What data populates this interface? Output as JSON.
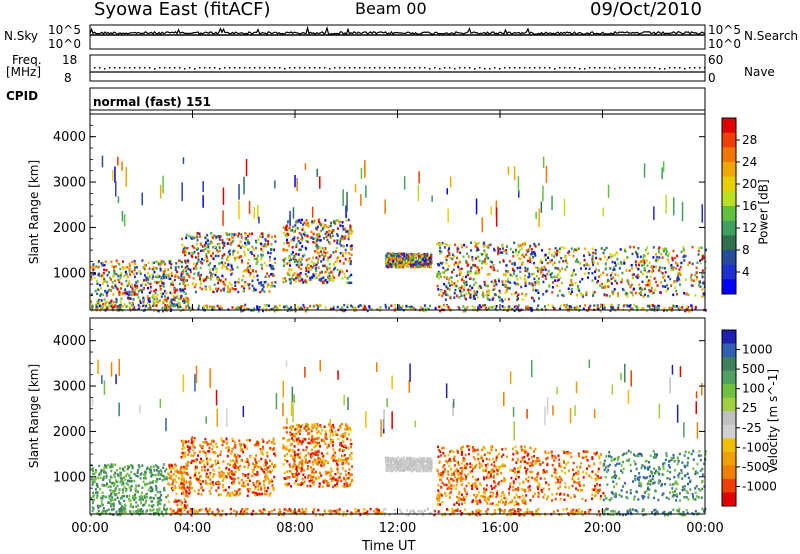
{
  "header": {
    "title": "Syowa East (fitACF)",
    "beam": "Beam 00",
    "date": "09/Oct/2010"
  },
  "top_panels": {
    "noise_left_label": "N.Sky",
    "noise_right_label": "N.Search",
    "noise_ticks": [
      "10^5",
      "10^0"
    ],
    "noise_right_ticks": [
      "10^5",
      "10^0"
    ],
    "freq_left_label": "Freq.",
    "freq_unit": "[MHz]",
    "freq_ticks": [
      "18",
      "8"
    ],
    "nave_label": "Nave",
    "nave_ticks": [
      "60",
      "0"
    ],
    "cpid_label": "CPID",
    "cpid_text": "normal (fast) 151"
  },
  "x_axis": {
    "label": "Time UT",
    "ticks": [
      "00:00",
      "04:00",
      "08:00",
      "12:00",
      "16:00",
      "20:00",
      "00:00"
    ]
  },
  "chart_data": [
    {
      "type": "heatmap",
      "name": "power",
      "ylabel": "Slant Range [km]",
      "yticks": [
        "4000",
        "3000",
        "2000",
        "1000"
      ],
      "ylim": [
        180,
        4500
      ],
      "xlim": [
        "00:00",
        "24:00"
      ],
      "colorbar": {
        "label": "Power [dB]",
        "ticks": [
          "28",
          "24",
          "20",
          "16",
          "12",
          "8",
          "4"
        ],
        "colors": [
          "#e00000",
          "#f04000",
          "#f07800",
          "#f0a800",
          "#e8d000",
          "#b8e020",
          "#60c040",
          "#40a060",
          "#307050",
          "#284c9c",
          "#2030d0",
          "#0000ff"
        ]
      }
    },
    {
      "type": "heatmap",
      "name": "velocity",
      "ylabel": "Slant Range [km]",
      "yticks": [
        "4000",
        "3000",
        "2000",
        "1000"
      ],
      "ylim": [
        180,
        4500
      ],
      "xlim": [
        "00:00",
        "24:00"
      ],
      "colorbar": {
        "label": "Velocity [m s^-1]",
        "ticks": [
          "1000",
          "500",
          "100",
          "25",
          "-25",
          "-100",
          "-500",
          "-1000"
        ],
        "colors": [
          "#2020b0",
          "#3060b0",
          "#408060",
          "#50a060",
          "#70c040",
          "#a0d040",
          "#c0c0c0",
          "#d0d0d0",
          "#f0c000",
          "#f0a000",
          "#f08000",
          "#f04000",
          "#e00000"
        ]
      }
    }
  ]
}
